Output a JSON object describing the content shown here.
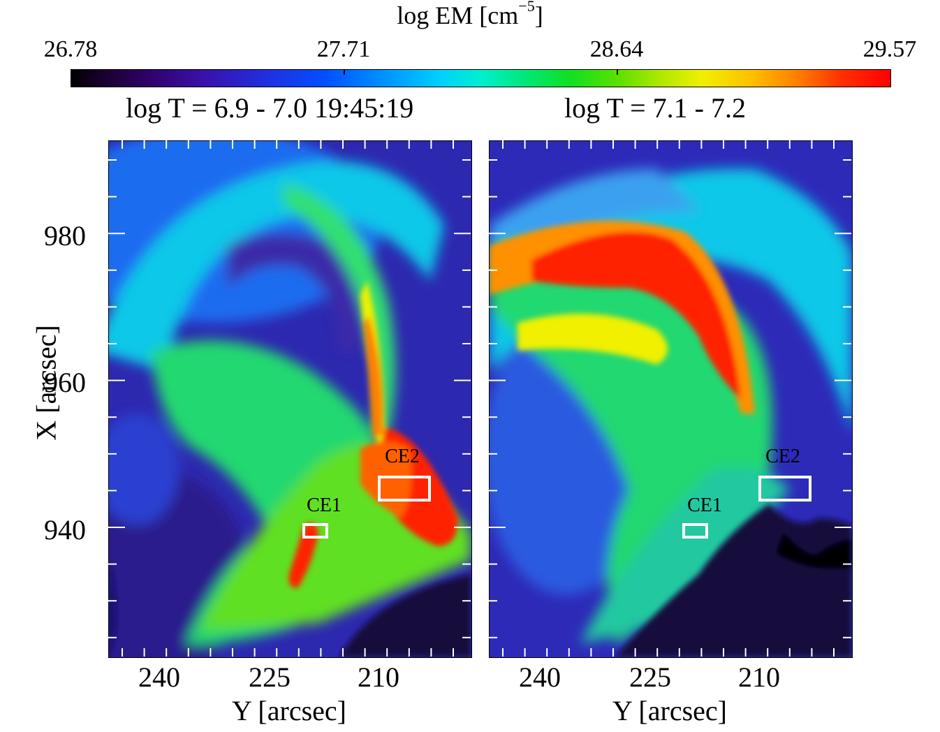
{
  "colorbar": {
    "title": "log EM [cm",
    "title_exp": "−5",
    "title_close": "]",
    "ticks": [
      "26.78",
      "27.71",
      "28.64",
      "29.57"
    ]
  },
  "panels": [
    {
      "title": "log T = 6.9 - 7.0 19:45:19",
      "ce1": "CE1",
      "ce2": "CE2"
    },
    {
      "title": "log T = 7.1 - 7.2",
      "ce1": "CE1",
      "ce2": "CE2"
    }
  ],
  "axes": {
    "ylabel": "X [arcsec]",
    "xlabel": "Y [arcsec]",
    "yticks": [
      "980",
      "960",
      "940"
    ],
    "xticks": [
      "240",
      "225",
      "210"
    ]
  },
  "colors": {
    "low": "#000000",
    "mid": "#00f0d0",
    "high": "#ff0000"
  }
}
